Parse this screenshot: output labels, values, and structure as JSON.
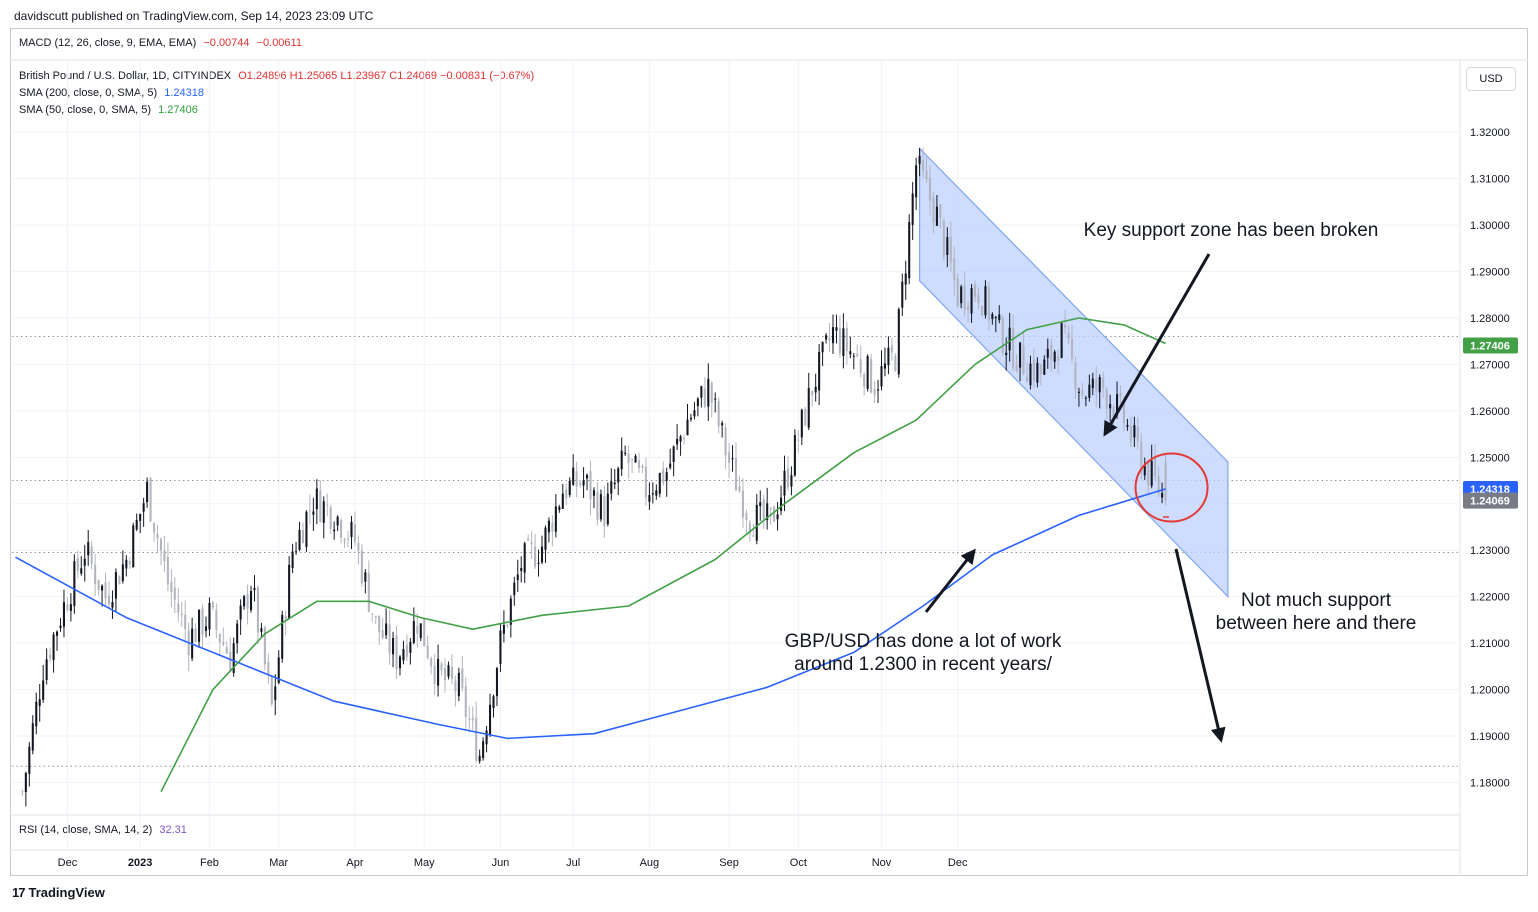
{
  "header": {
    "published": "davidscutt published on TradingView.com, Sep 14, 2023 23:09 UTC"
  },
  "macd": {
    "label": "MACD (12, 26, close, 9, EMA, EMA)",
    "v1": "−0.00744",
    "v2": "−0.00611"
  },
  "symbol": {
    "name": "British Pound / U.S. Dollar, 1D, CITYINDEX",
    "ohlc": "O1.24896  H1.25065  L1.23967  C1.24069  −0.00831 (−0.67%)"
  },
  "sma200": {
    "label": "SMA (200, close, 0, SMA, 5)",
    "value": "1.24318"
  },
  "sma50": {
    "label": "SMA (50, close, 0, SMA, 5)",
    "value": "1.27406"
  },
  "rsi": {
    "label": "RSI (14, close, SMA, 14, 2)",
    "value": "32.31"
  },
  "currency_button": "USD",
  "footer": {
    "logo": "17",
    "brand": "TradingView"
  },
  "colors": {
    "sma200": "#2962ff",
    "sma50": "#43a047",
    "channel": "#bcd0ff",
    "up": "#131722",
    "down": "#b2b5be",
    "circle": "#e53935"
  },
  "chart_data": {
    "type": "candlestick",
    "symbol": "GBP/USD",
    "x_axis": {
      "tick_labels": [
        "Dec",
        "2023",
        "Feb",
        "Mar",
        "Apr",
        "May",
        "Jun",
        "Jul",
        "Aug",
        "Sep",
        "Oct",
        "Nov",
        "Dec"
      ]
    },
    "y_axis": {
      "range": [
        1.173,
        1.328
      ],
      "tick_labels": [
        "1.32000",
        "1.31000",
        "1.30000",
        "1.29000",
        "1.28000",
        "1.27000",
        "1.26000",
        "1.25000",
        "1.24000",
        "1.23000",
        "1.22000",
        "1.21000",
        "1.20000",
        "1.19000",
        "1.18000"
      ]
    },
    "price_badges": [
      {
        "value": "1.27406",
        "color": "#43a047"
      },
      {
        "value": "1.24318",
        "color": "#2962ff"
      },
      {
        "value": "1.24069",
        "color": "#787b86"
      }
    ],
    "horizontal_levels": [
      1.276,
      1.245,
      1.2295,
      1.1835
    ],
    "close_series": [
      {
        "t": 0,
        "c": 1.178
      },
      {
        "t": 6,
        "c": 1.205
      },
      {
        "t": 12,
        "c": 1.218
      },
      {
        "t": 18,
        "c": 1.23
      },
      {
        "t": 24,
        "c": 1.22
      },
      {
        "t": 30,
        "c": 1.228
      },
      {
        "t": 36,
        "c": 1.243
      },
      {
        "t": 42,
        "c": 1.223
      },
      {
        "t": 48,
        "c": 1.211
      },
      {
        "t": 54,
        "c": 1.216
      },
      {
        "t": 60,
        "c": 1.207
      },
      {
        "t": 66,
        "c": 1.223
      },
      {
        "t": 72,
        "c": 1.196
      },
      {
        "t": 78,
        "c": 1.23
      },
      {
        "t": 84,
        "c": 1.241
      },
      {
        "t": 90,
        "c": 1.238
      },
      {
        "t": 96,
        "c": 1.232
      },
      {
        "t": 102,
        "c": 1.214
      },
      {
        "t": 108,
        "c": 1.207
      },
      {
        "t": 114,
        "c": 1.215
      },
      {
        "t": 120,
        "c": 1.203
      },
      {
        "t": 126,
        "c": 1.2
      },
      {
        "t": 132,
        "c": 1.186
      },
      {
        "t": 138,
        "c": 1.21
      },
      {
        "t": 144,
        "c": 1.227
      },
      {
        "t": 150,
        "c": 1.231
      },
      {
        "t": 156,
        "c": 1.243
      },
      {
        "t": 162,
        "c": 1.245
      },
      {
        "t": 168,
        "c": 1.238
      },
      {
        "t": 174,
        "c": 1.25
      },
      {
        "t": 180,
        "c": 1.243
      },
      {
        "t": 186,
        "c": 1.247
      },
      {
        "t": 192,
        "c": 1.258
      },
      {
        "t": 198,
        "c": 1.265
      },
      {
        "t": 204,
        "c": 1.249
      },
      {
        "t": 210,
        "c": 1.237
      },
      {
        "t": 216,
        "c": 1.236
      },
      {
        "t": 222,
        "c": 1.249
      },
      {
        "t": 228,
        "c": 1.265
      },
      {
        "t": 234,
        "c": 1.277
      },
      {
        "t": 240,
        "c": 1.272
      },
      {
        "t": 246,
        "c": 1.266
      },
      {
        "t": 252,
        "c": 1.272
      },
      {
        "t": 258,
        "c": 1.313
      },
      {
        "t": 264,
        "c": 1.302
      },
      {
        "t": 270,
        "c": 1.285
      },
      {
        "t": 276,
        "c": 1.286
      },
      {
        "t": 282,
        "c": 1.277
      },
      {
        "t": 288,
        "c": 1.271
      },
      {
        "t": 294,
        "c": 1.268
      },
      {
        "t": 300,
        "c": 1.276
      },
      {
        "t": 306,
        "c": 1.264
      },
      {
        "t": 312,
        "c": 1.265
      },
      {
        "t": 318,
        "c": 1.258
      },
      {
        "t": 324,
        "c": 1.248
      },
      {
        "t": 330,
        "c": 1.2407
      }
    ],
    "sma200": [
      {
        "t": -2,
        "c": 1.2285
      },
      {
        "t": 30,
        "c": 1.2155
      },
      {
        "t": 60,
        "c": 1.2065
      },
      {
        "t": 90,
        "c": 1.1975
      },
      {
        "t": 120,
        "c": 1.1925
      },
      {
        "t": 140,
        "c": 1.1895
      },
      {
        "t": 165,
        "c": 1.1905
      },
      {
        "t": 190,
        "c": 1.1955
      },
      {
        "t": 215,
        "c": 1.2005
      },
      {
        "t": 240,
        "c": 1.208
      },
      {
        "t": 260,
        "c": 1.218
      },
      {
        "t": 280,
        "c": 1.229
      },
      {
        "t": 305,
        "c": 1.2375
      },
      {
        "t": 330,
        "c": 1.2432
      }
    ],
    "sma50": [
      {
        "t": 40,
        "c": 1.178
      },
      {
        "t": 55,
        "c": 1.2
      },
      {
        "t": 70,
        "c": 1.212
      },
      {
        "t": 85,
        "c": 1.219
      },
      {
        "t": 100,
        "c": 1.219
      },
      {
        "t": 115,
        "c": 1.2155
      },
      {
        "t": 130,
        "c": 1.213
      },
      {
        "t": 150,
        "c": 1.216
      },
      {
        "t": 175,
        "c": 1.218
      },
      {
        "t": 200,
        "c": 1.228
      },
      {
        "t": 220,
        "c": 1.24
      },
      {
        "t": 240,
        "c": 1.251
      },
      {
        "t": 258,
        "c": 1.258
      },
      {
        "t": 275,
        "c": 1.27
      },
      {
        "t": 290,
        "c": 1.2775
      },
      {
        "t": 305,
        "c": 1.28
      },
      {
        "t": 318,
        "c": 1.2785
      },
      {
        "t": 330,
        "c": 1.2745
      }
    ],
    "channel": {
      "t_start": 259,
      "t_end": 348,
      "upper": [
        1.3165,
        1.249
      ],
      "lower": [
        1.288,
        1.22
      ]
    },
    "annotations": [
      {
        "text": "Key support zone has been broken"
      },
      {
        "text": "GBP/USD has done a lot of work"
      },
      {
        "text": "around 1.2300 in recent years/"
      },
      {
        "text": "Not much support"
      },
      {
        "text": "between here and there"
      }
    ]
  }
}
